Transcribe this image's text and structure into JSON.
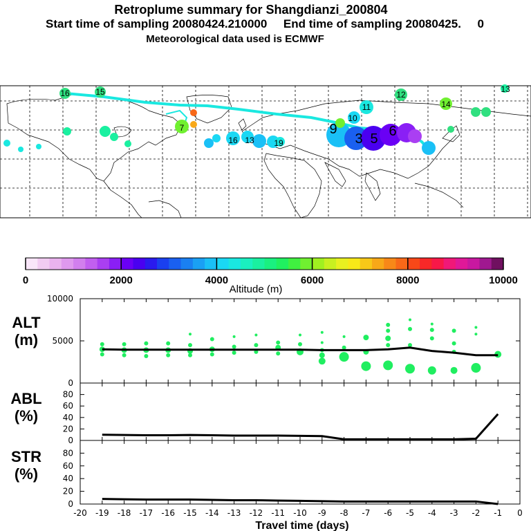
{
  "header": {
    "line1": "Retroplume summary for Shangdianzi_200804",
    "line2": "Start time of sampling 20080424.210000     End time of sampling 20080425.     0",
    "line3": "Meteorological data used is ECMWF"
  },
  "colorbar": {
    "label": "Altitude (m)",
    "ticks": [
      {
        "value": 0,
        "label": "0"
      },
      {
        "value": 2000,
        "label": "2000"
      },
      {
        "value": 4000,
        "label": "4000"
      },
      {
        "value": 6000,
        "label": "6000"
      },
      {
        "value": 8000,
        "label": "8000"
      },
      {
        "value": 10000,
        "label": "10000"
      }
    ],
    "colors": [
      "#f9e6f9",
      "#f2ccf2",
      "#eab3ef",
      "#df99ee",
      "#d27fee",
      "#c25ff0",
      "#aa3ff2",
      "#8a1ff5",
      "#6a00f5",
      "#4a00f0",
      "#2a1aee",
      "#1a40ef",
      "#1a60f0",
      "#1a80f2",
      "#1aa0f4",
      "#1ac0f6",
      "#1ad8f4",
      "#1ae8e0",
      "#1af0c0",
      "#1af0a0",
      "#1af080",
      "#20f060",
      "#40f040",
      "#70f030",
      "#a0f020",
      "#c8f020",
      "#e8f020",
      "#f8e818",
      "#f8c818",
      "#f8a818",
      "#f88818",
      "#f86818",
      "#f84818",
      "#f82828",
      "#f81848",
      "#f01878",
      "#e01898",
      "#c818a0",
      "#a01890",
      "#701060"
    ]
  },
  "map": {
    "labels": [
      {
        "text": "16",
        "color": "#30e080"
      },
      {
        "text": "15",
        "color": "#30e080"
      },
      {
        "text": "12",
        "color": "#30e080"
      },
      {
        "text": "14",
        "color": "#70f030"
      },
      {
        "text": "13",
        "color": "#30e080"
      },
      {
        "text": "7",
        "color": "#70f030"
      },
      {
        "text": "9",
        "color": "#1ad8f4"
      },
      {
        "text": "3",
        "color": "#2a1aee"
      },
      {
        "text": "5",
        "color": "#2a1aee"
      },
      {
        "text": "6",
        "color": "#8a1ff5"
      },
      {
        "text": "10",
        "color": "#1ad8f4"
      },
      {
        "text": "11",
        "color": "#1ad8f4"
      },
      {
        "text": "16",
        "color": "#1ad8f4"
      },
      {
        "text": "13",
        "color": "#1ad8f4"
      },
      {
        "text": "19",
        "color": "#1ad8f4"
      }
    ]
  },
  "chart_data": [
    {
      "type": "scatter",
      "panel": "ALT",
      "ylabel": "ALT\n(m)",
      "ylabel_line1": "ALT",
      "ylabel_line2": "(m)",
      "xlim": [
        -20,
        0
      ],
      "ylim": [
        0,
        10000
      ],
      "yticks": [
        {
          "value": 10000,
          "label": "10000"
        },
        {
          "value": 5000,
          "label": "5000"
        },
        {
          "value": 0,
          "label": "0"
        }
      ],
      "mean_line": {
        "x": [
          -19,
          -18,
          -17,
          -16,
          -15,
          -14,
          -13,
          -12,
          -11,
          -10,
          -9,
          -8,
          -7,
          -6,
          -5,
          -4,
          -3,
          -2,
          -1
        ],
        "y": [
          4000,
          3950,
          3950,
          3950,
          3950,
          3950,
          3950,
          3950,
          3950,
          3950,
          3900,
          3900,
          3900,
          4000,
          4200,
          3800,
          3600,
          3300,
          3300
        ]
      },
      "clusters": [
        {
          "x": -19,
          "y": [
            4600,
            4000,
            3400
          ],
          "r": [
            3,
            4,
            3
          ]
        },
        {
          "x": -18,
          "y": [
            4600,
            3900,
            3300
          ],
          "r": [
            3,
            4,
            3
          ]
        },
        {
          "x": -17,
          "y": [
            4700,
            3900,
            3200
          ],
          "r": [
            3,
            4,
            3
          ]
        },
        {
          "x": -16,
          "y": [
            4700,
            3900,
            3300
          ],
          "r": [
            3,
            4,
            3
          ]
        },
        {
          "x": -15,
          "y": [
            5800,
            4500,
            3800,
            3300
          ],
          "r": [
            2,
            3,
            4,
            3
          ]
        },
        {
          "x": -14,
          "y": [
            5200,
            4000,
            3400
          ],
          "r": [
            3,
            4,
            3
          ]
        },
        {
          "x": -13,
          "y": [
            5500,
            4300,
            3600
          ],
          "r": [
            2,
            3,
            3
          ]
        },
        {
          "x": -12,
          "y": [
            5700,
            4500,
            3700
          ],
          "r": [
            2,
            3,
            3
          ]
        },
        {
          "x": -11,
          "y": [
            4800,
            4200,
            3500
          ],
          "r": [
            3,
            4,
            3
          ]
        },
        {
          "x": -10,
          "y": [
            5700,
            4600,
            3700
          ],
          "r": [
            2,
            3,
            5
          ]
        },
        {
          "x": -9,
          "y": [
            6000,
            4800,
            3900,
            3300,
            2600
          ],
          "r": [
            2,
            2,
            3,
            4,
            5
          ]
        },
        {
          "x": -8,
          "y": [
            5500,
            4200,
            3100
          ],
          "r": [
            2,
            3,
            7
          ]
        },
        {
          "x": -7,
          "y": [
            5400,
            3700,
            2000
          ],
          "r": [
            4,
            4,
            7
          ]
        },
        {
          "x": -6,
          "y": [
            6900,
            6200,
            5300,
            4500,
            2100
          ],
          "r": [
            3,
            3,
            4,
            3,
            7
          ]
        },
        {
          "x": -5,
          "y": [
            7500,
            6400,
            4500,
            1700
          ],
          "r": [
            2,
            3,
            3,
            7
          ]
        },
        {
          "x": -4,
          "y": [
            7000,
            6300,
            5300,
            1500
          ],
          "r": [
            2,
            3,
            3,
            6
          ]
        },
        {
          "x": -3,
          "y": [
            6200,
            4700,
            3700,
            1500
          ],
          "r": [
            3,
            3,
            3,
            5
          ]
        },
        {
          "x": -2,
          "y": [
            6600,
            5800,
            1800
          ],
          "r": [
            2,
            2,
            7
          ]
        },
        {
          "x": -1,
          "y": [
            3400
          ],
          "r": [
            5
          ]
        }
      ],
      "dot_color": "#20ee60"
    },
    {
      "type": "line",
      "panel": "ABL",
      "ylabel_line1": "ABL",
      "ylabel_line2": "(%)",
      "xlim": [
        -20,
        0
      ],
      "ylim": [
        0,
        100
      ],
      "yticks": [
        {
          "value": 80,
          "label": "80"
        },
        {
          "value": 60,
          "label": "60"
        },
        {
          "value": 40,
          "label": "40"
        },
        {
          "value": 20,
          "label": "20"
        },
        {
          "value": 0,
          "label": "0"
        }
      ],
      "x": [
        -19,
        -18,
        -17,
        -16,
        -15,
        -14,
        -13,
        -12,
        -11,
        -10,
        -9,
        -8,
        -7,
        -6,
        -5,
        -4,
        -3,
        -2,
        -1
      ],
      "y": [
        10,
        9.5,
        9,
        9,
        9.5,
        9,
        8.5,
        8.5,
        8.5,
        8,
        7.5,
        2,
        2,
        2,
        2,
        2,
        2,
        3,
        46
      ]
    },
    {
      "type": "line",
      "panel": "STR",
      "ylabel_line1": "STR",
      "ylabel_line2": "(%)",
      "xlim": [
        -20,
        0
      ],
      "ylim": [
        0,
        100
      ],
      "xlabel": "Travel time (days)",
      "yticks": [
        {
          "value": 80,
          "label": "80"
        },
        {
          "value": 60,
          "label": "60"
        },
        {
          "value": 40,
          "label": "40"
        },
        {
          "value": 20,
          "label": "20"
        },
        {
          "value": 0,
          "label": "0"
        }
      ],
      "xticks": [
        {
          "value": -20,
          "label": "-20"
        },
        {
          "value": -19,
          "label": "-19"
        },
        {
          "value": -18,
          "label": "-18"
        },
        {
          "value": -17,
          "label": "-17"
        },
        {
          "value": -16,
          "label": "-16"
        },
        {
          "value": -15,
          "label": "-15"
        },
        {
          "value": -14,
          "label": "-14"
        },
        {
          "value": -13,
          "label": "-13"
        },
        {
          "value": -12,
          "label": "-12"
        },
        {
          "value": -11,
          "label": "-11"
        },
        {
          "value": -10,
          "label": "-10"
        },
        {
          "value": -9,
          "label": "-9"
        },
        {
          "value": -8,
          "label": "-8"
        },
        {
          "value": -7,
          "label": "-7"
        },
        {
          "value": -6,
          "label": "-6"
        },
        {
          "value": -5,
          "label": "-5"
        },
        {
          "value": -4,
          "label": "-4"
        },
        {
          "value": -3,
          "label": "-3"
        },
        {
          "value": -2,
          "label": "-2"
        },
        {
          "value": -1,
          "label": "-1"
        },
        {
          "value": 0,
          "label": "0"
        }
      ],
      "x": [
        -19,
        -18,
        -17,
        -16,
        -15,
        -14,
        -13,
        -12,
        -11,
        -10,
        -9,
        -8,
        -7,
        -6,
        -5,
        -4,
        -3,
        -2,
        -1
      ],
      "y": [
        8,
        7.5,
        7,
        7,
        7,
        6.5,
        6,
        6,
        5.5,
        5,
        4.5,
        4,
        4,
        4,
        4,
        4,
        4,
        4,
        0
      ]
    }
  ]
}
